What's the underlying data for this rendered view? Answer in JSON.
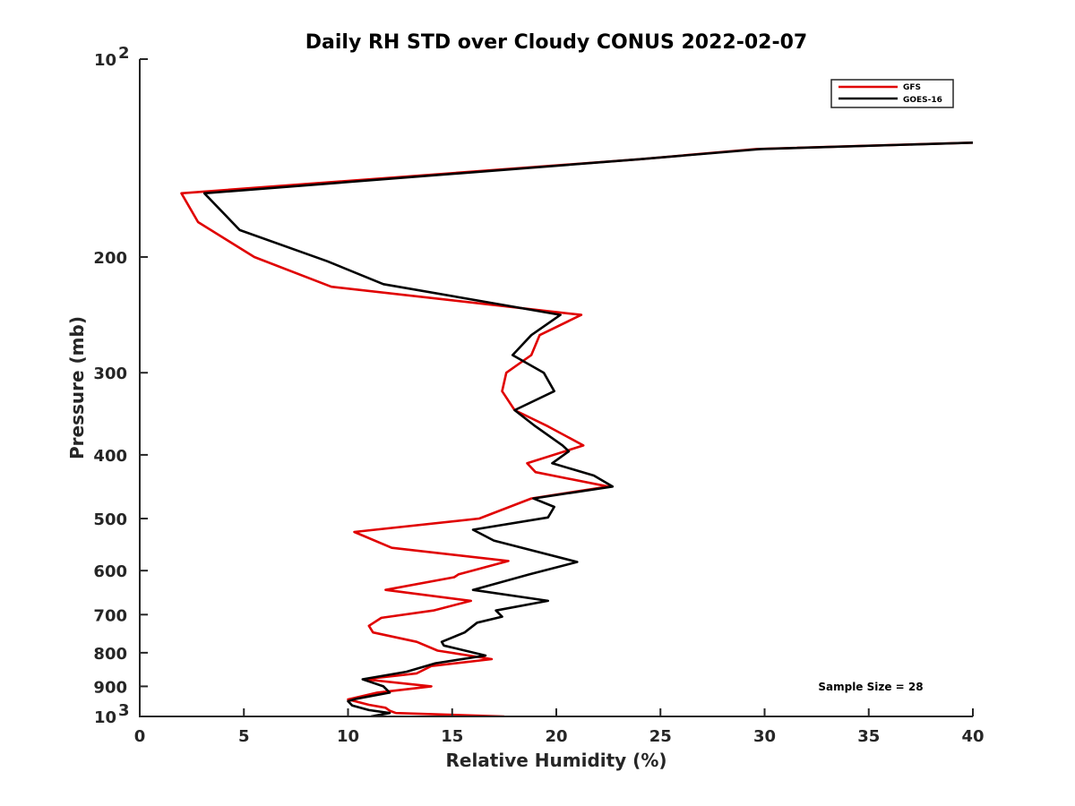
{
  "chart_data": {
    "type": "line",
    "title": "Daily RH STD over Cloudy CONUS 2022-02-07",
    "xlabel": "Relative Humidity (%)",
    "ylabel": "Pressure (mb)",
    "xlim": [
      0,
      40
    ],
    "ylim": [
      100,
      1000
    ],
    "y_scale": "log",
    "y_reversed": true,
    "x_ticks": [
      "0",
      "5",
      "10",
      "15",
      "20",
      "25",
      "30",
      "35",
      "40"
    ],
    "y_ticks": [
      {
        "value": 100,
        "label": "10",
        "sup": "2"
      },
      {
        "value": 200,
        "label": "200",
        "sup": ""
      },
      {
        "value": 300,
        "label": "300",
        "sup": ""
      },
      {
        "value": 400,
        "label": "400",
        "sup": ""
      },
      {
        "value": 500,
        "label": "500",
        "sup": ""
      },
      {
        "value": 600,
        "label": "600",
        "sup": ""
      },
      {
        "value": 700,
        "label": "700",
        "sup": ""
      },
      {
        "value": 800,
        "label": "800",
        "sup": ""
      },
      {
        "value": 900,
        "label": "900",
        "sup": ""
      },
      {
        "value": 1000,
        "label": "10",
        "sup": "3"
      }
    ],
    "grid": false,
    "legend_position": "top-right",
    "annotation": "Sample Size = 28",
    "series": [
      {
        "name": "GFS",
        "color": "#e00000",
        "points": [
          [
            40.0,
            134
          ],
          [
            29.6,
            137
          ],
          [
            24.0,
            142
          ],
          [
            2.0,
            160
          ],
          [
            2.8,
            177
          ],
          [
            5.5,
            200
          ],
          [
            9.2,
            222
          ],
          [
            21.2,
            245
          ],
          [
            19.2,
            263
          ],
          [
            18.8,
            282
          ],
          [
            17.6,
            300
          ],
          [
            17.4,
            320
          ],
          [
            18.0,
            342
          ],
          [
            19.6,
            362
          ],
          [
            21.3,
            387
          ],
          [
            18.6,
            412
          ],
          [
            19.0,
            425
          ],
          [
            22.5,
            447
          ],
          [
            18.8,
            466
          ],
          [
            16.3,
            500
          ],
          [
            10.3,
            524
          ],
          [
            12.1,
            554
          ],
          [
            17.7,
            580
          ],
          [
            15.3,
            608
          ],
          [
            15.1,
            614
          ],
          [
            11.8,
            642
          ],
          [
            15.9,
            667
          ],
          [
            14.1,
            690
          ],
          [
            11.6,
            708
          ],
          [
            11.0,
            728
          ],
          [
            11.2,
            745
          ],
          [
            13.3,
            770
          ],
          [
            14.3,
            794
          ],
          [
            16.9,
            818
          ],
          [
            14.0,
            838
          ],
          [
            13.3,
            860
          ],
          [
            10.8,
            878
          ],
          [
            14.0,
            900
          ],
          [
            11.4,
            920
          ],
          [
            10.0,
            942
          ],
          [
            11.0,
            960
          ],
          [
            11.8,
            970
          ],
          [
            12.0,
            980
          ],
          [
            12.3,
            988
          ],
          [
            17.5,
            1000
          ]
        ]
      },
      {
        "name": "GOES-16",
        "color": "#000000",
        "points": [
          [
            40.0,
            134
          ],
          [
            29.8,
            137
          ],
          [
            24.0,
            142
          ],
          [
            3.1,
            160
          ],
          [
            4.8,
            182
          ],
          [
            9.0,
            203
          ],
          [
            11.7,
            220
          ],
          [
            20.2,
            245
          ],
          [
            18.8,
            263
          ],
          [
            17.9,
            282
          ],
          [
            19.4,
            300
          ],
          [
            19.9,
            320
          ],
          [
            18.0,
            342
          ],
          [
            19.0,
            362
          ],
          [
            20.3,
            387
          ],
          [
            20.6,
            395
          ],
          [
            19.8,
            412
          ],
          [
            21.8,
            430
          ],
          [
            22.7,
            447
          ],
          [
            18.9,
            466
          ],
          [
            19.9,
            480
          ],
          [
            19.6,
            498
          ],
          [
            16.0,
            520
          ],
          [
            17.0,
            540
          ],
          [
            21.0,
            582
          ],
          [
            18.7,
            608
          ],
          [
            16.0,
            642
          ],
          [
            19.6,
            667
          ],
          [
            17.1,
            690
          ],
          [
            17.4,
            705
          ],
          [
            16.2,
            720
          ],
          [
            15.6,
            745
          ],
          [
            14.5,
            770
          ],
          [
            14.6,
            780
          ],
          [
            16.6,
            808
          ],
          [
            14.2,
            830
          ],
          [
            12.8,
            855
          ],
          [
            10.7,
            878
          ],
          [
            11.7,
            900
          ],
          [
            12.0,
            920
          ],
          [
            10.4,
            940
          ],
          [
            10.0,
            948
          ],
          [
            10.2,
            962
          ],
          [
            11.0,
            978
          ],
          [
            12.0,
            988
          ],
          [
            11.1,
            1000
          ]
        ]
      }
    ]
  }
}
